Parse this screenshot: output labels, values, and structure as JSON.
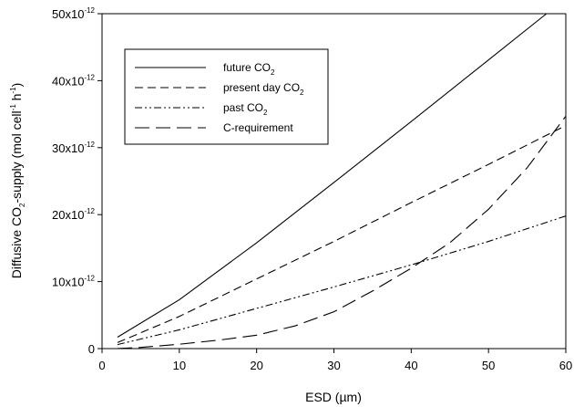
{
  "chart_data": {
    "type": "line",
    "xlabel": "ESD (µm)",
    "ylabel": {
      "prefix": "Diffusive CO",
      "sub": "2",
      "middle": "-supply (mol cell",
      "sup1": "-1",
      "middle2": " h",
      "sup2": "-1",
      "suffix": ")"
    },
    "xlim": [
      0,
      60
    ],
    "ylim": [
      0,
      5e-11
    ],
    "xticks": [
      {
        "value": 0,
        "label": "0"
      },
      {
        "value": 10,
        "label": "10"
      },
      {
        "value": 20,
        "label": "20"
      },
      {
        "value": 30,
        "label": "30"
      },
      {
        "value": 40,
        "label": "40"
      },
      {
        "value": 50,
        "label": "50"
      },
      {
        "value": 60,
        "label": "60"
      }
    ],
    "yticks": [
      {
        "value": 0,
        "base": "0",
        "exp": ""
      },
      {
        "value": 1e-11,
        "base": "10x10",
        "exp": "-12"
      },
      {
        "value": 2e-11,
        "base": "20x10",
        "exp": "-12"
      },
      {
        "value": 3e-11,
        "base": "30x10",
        "exp": "-12"
      },
      {
        "value": 4e-11,
        "base": "40x10",
        "exp": "-12"
      },
      {
        "value": 5e-11,
        "base": "50x10",
        "exp": "-12"
      }
    ],
    "grid": false,
    "legend_position": "top-left",
    "series": [
      {
        "name": "future CO2",
        "label_base": "future CO",
        "label_sub": "2",
        "dash": "",
        "x": [
          2,
          10,
          20,
          30,
          40,
          50,
          57.5
        ],
        "y": [
          1.7e-12,
          7.3e-12,
          1.58e-11,
          2.48e-11,
          3.39e-11,
          4.31e-11,
          5e-11
        ]
      },
      {
        "name": "present day CO2",
        "label_base": "present day CO",
        "label_sub": "2",
        "dash": "9,5",
        "x": [
          2,
          10,
          20,
          30,
          40,
          50,
          60
        ],
        "y": [
          9e-13,
          4.8e-12,
          1.04e-11,
          1.6e-11,
          2.18e-11,
          2.75e-11,
          3.33e-11
        ]
      },
      {
        "name": "past CO2",
        "label_base": "past CO",
        "label_sub": "2",
        "dash": "8,3,2,3,2,3",
        "x": [
          2,
          10,
          20,
          30,
          40,
          50,
          60
        ],
        "y": [
          6e-13,
          2.8e-12,
          6e-12,
          9.2e-12,
          1.25e-11,
          1.6e-11,
          1.98e-11
        ]
      },
      {
        "name": "C-requirement",
        "label_base": "C-requirement",
        "label_sub": "",
        "dash": "16,7",
        "x": [
          2,
          5,
          10,
          15,
          20,
          25,
          30,
          35,
          40,
          45,
          50,
          55,
          60
        ],
        "y": [
          1.5e-14,
          1.8e-13,
          6.5e-13,
          1.25e-12,
          2e-12,
          3.4e-12,
          5.5e-12,
          8.6e-12,
          1.2e-11,
          1.58e-11,
          2.08e-11,
          2.7e-11,
          3.47e-11
        ]
      }
    ]
  }
}
